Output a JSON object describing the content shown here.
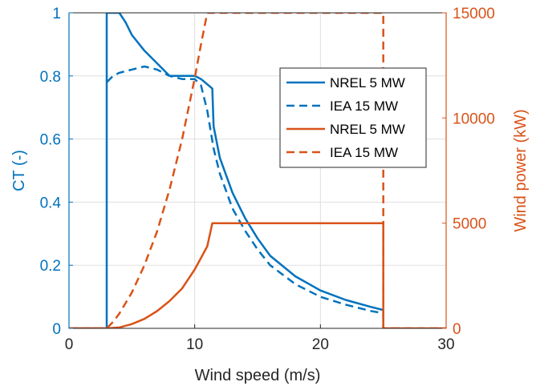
{
  "chart_data": {
    "type": "line",
    "xlabel": "Wind speed (m/s)",
    "ylabel_left": "CT (-)",
    "ylabel_right": "Wind power (kW)",
    "xlim": [
      0,
      30
    ],
    "ylim_left": [
      0,
      1
    ],
    "ylim_right": [
      0,
      15000
    ],
    "x_ticks": [
      "0",
      "10",
      "20",
      "30"
    ],
    "y_left_ticks": [
      "0",
      "0.2",
      "0.4",
      "0.6",
      "0.8",
      "1"
    ],
    "y_right_ticks": [
      "0",
      "5000",
      "10000",
      "15000"
    ],
    "grid": true,
    "legend_position": "top-right",
    "colors": {
      "ct": "#0072BD",
      "power": "#D95319"
    },
    "series": [
      {
        "name": "NREL 5 MW",
        "axis": "left",
        "style": "solid",
        "x": [
          0,
          3,
          3,
          3.5,
          4,
          4.5,
          5,
          6,
          7,
          8,
          9,
          10,
          10.5,
          11.4,
          11.5,
          12,
          13,
          14,
          15,
          16,
          18,
          20,
          22,
          24,
          25,
          25
        ],
        "y": [
          0,
          0,
          1,
          1,
          1,
          0.97,
          0.93,
          0.88,
          0.84,
          0.8,
          0.8,
          0.8,
          0.79,
          0.76,
          0.64,
          0.54,
          0.43,
          0.35,
          0.285,
          0.23,
          0.165,
          0.12,
          0.09,
          0.068,
          0.058,
          0
        ]
      },
      {
        "name": "IEA 15 MW",
        "axis": "left",
        "style": "dashed",
        "x": [
          3,
          3.5,
          4,
          5,
          6,
          7,
          8,
          9,
          10,
          10.5,
          11,
          11.5,
          12,
          13,
          14,
          15,
          16,
          18,
          20,
          22,
          24,
          25,
          25
        ],
        "y": [
          0.78,
          0.8,
          0.81,
          0.82,
          0.83,
          0.82,
          0.8,
          0.79,
          0.79,
          0.77,
          0.69,
          0.57,
          0.49,
          0.38,
          0.31,
          0.25,
          0.2,
          0.14,
          0.1,
          0.075,
          0.055,
          0.048,
          0
        ]
      },
      {
        "name": "NREL 5 MW",
        "axis": "right",
        "style": "solid",
        "x": [
          0,
          3,
          4,
          5,
          6,
          7,
          8,
          9,
          10,
          11,
          11.4,
          25,
          25,
          30
        ],
        "y": [
          0,
          0,
          40,
          200,
          450,
          820,
          1300,
          1900,
          2800,
          3900,
          5000,
          5000,
          0,
          0
        ]
      },
      {
        "name": "IEA 15 MW",
        "axis": "right",
        "style": "dashed",
        "x": [
          0,
          3,
          3.5,
          4,
          5,
          6,
          7,
          8,
          9,
          10,
          10.5,
          11,
          25,
          25,
          30
        ],
        "y": [
          0,
          0,
          300,
          700,
          1700,
          3000,
          4600,
          6600,
          9000,
          11900,
          13500,
          15000,
          15000,
          0,
          0
        ]
      }
    ]
  }
}
